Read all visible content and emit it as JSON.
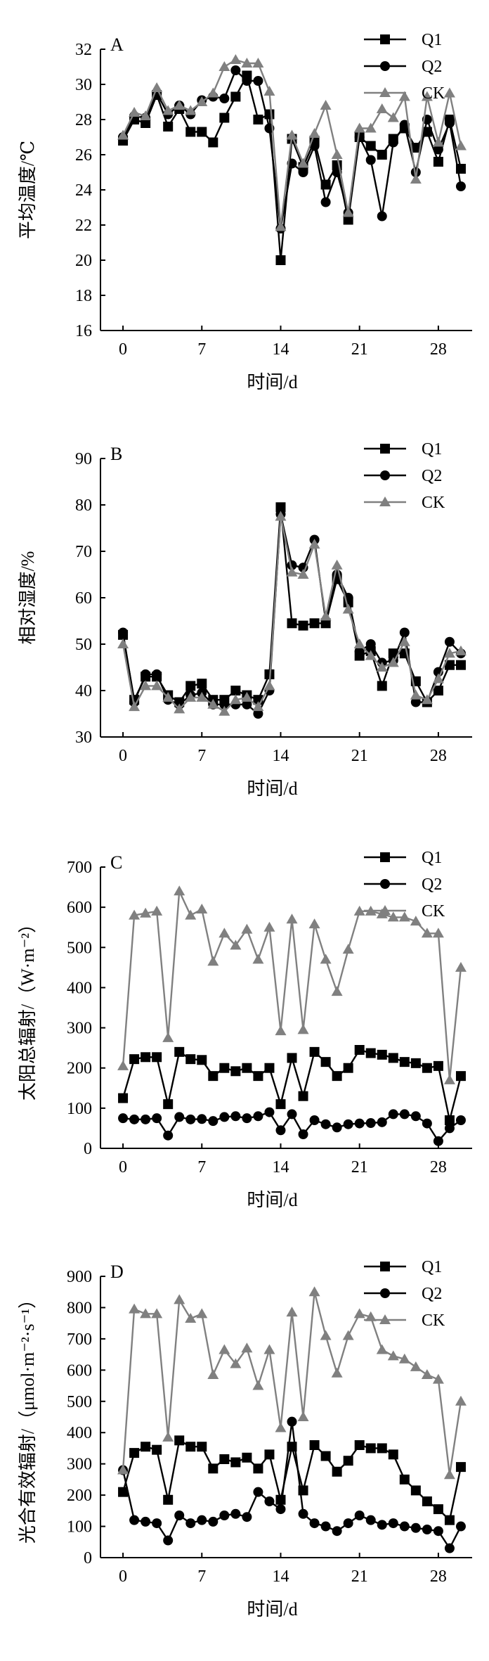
{
  "chart_data": [
    {
      "type": "line",
      "panel": "A",
      "ylabel": "平均温度/℃",
      "xlabel": "时间/d",
      "ylim": [
        16,
        32
      ],
      "yticks": [
        16,
        18,
        20,
        22,
        24,
        26,
        28,
        30,
        32
      ],
      "xlim": [
        -2,
        31
      ],
      "xticks": [
        0,
        7,
        14,
        21,
        28
      ],
      "x": [
        0,
        1,
        2,
        3,
        4,
        5,
        6,
        7,
        8,
        9,
        10,
        11,
        12,
        13,
        14,
        15,
        16,
        17,
        18,
        19,
        20,
        21,
        22,
        23,
        24,
        25,
        26,
        27,
        28,
        29,
        30
      ],
      "series": [
        {
          "name": "Q1",
          "marker": "square",
          "color": "#000000",
          "values": [
            26.8,
            28.0,
            27.8,
            29.4,
            27.6,
            28.6,
            27.3,
            27.3,
            26.7,
            28.1,
            29.3,
            30.5,
            28.0,
            28.3,
            20.0,
            26.9,
            25.3,
            26.8,
            24.3,
            25.4,
            22.3,
            27.0,
            26.5,
            26.0,
            26.9,
            27.5,
            26.4,
            27.3,
            25.6,
            28.0,
            25.2
          ]
        },
        {
          "name": "Q2",
          "marker": "circle",
          "color": "#000000",
          "values": [
            27.0,
            28.2,
            28.1,
            29.5,
            28.3,
            28.8,
            28.3,
            29.1,
            29.3,
            29.2,
            30.8,
            30.2,
            30.2,
            27.5,
            21.8,
            25.5,
            25.0,
            26.5,
            23.3,
            25.0,
            22.7,
            27.0,
            25.7,
            22.5,
            26.7,
            27.7,
            25.0,
            28.0,
            26.3,
            27.8,
            24.2
          ]
        },
        {
          "name": "CK",
          "marker": "triangle",
          "color": "#808080",
          "values": [
            27.1,
            28.4,
            28.2,
            29.8,
            28.5,
            28.8,
            28.5,
            29.0,
            29.5,
            31.0,
            31.4,
            31.2,
            31.2,
            29.6,
            21.9,
            27.1,
            25.5,
            27.2,
            28.8,
            26.0,
            22.7,
            27.5,
            27.5,
            28.6,
            28.1,
            29.3,
            24.6,
            29.3,
            26.7,
            29.5,
            26.5
          ]
        }
      ]
    },
    {
      "type": "line",
      "panel": "B",
      "ylabel": "相对湿度/%",
      "xlabel": "时间/d",
      "ylim": [
        30,
        90
      ],
      "yticks": [
        30,
        40,
        50,
        60,
        70,
        80,
        90
      ],
      "xlim": [
        -2,
        31
      ],
      "xticks": [
        0,
        7,
        14,
        21,
        28
      ],
      "x": [
        0,
        1,
        2,
        3,
        4,
        5,
        6,
        7,
        8,
        9,
        10,
        11,
        12,
        13,
        14,
        15,
        16,
        17,
        18,
        19,
        20,
        21,
        22,
        23,
        24,
        25,
        26,
        27,
        28,
        29,
        30
      ],
      "series": [
        {
          "name": "Q1",
          "marker": "square",
          "color": "#000000",
          "values": [
            52.0,
            38.0,
            43.0,
            43.0,
            39.0,
            37.5,
            41.0,
            41.5,
            38.0,
            38.0,
            40.0,
            39.0,
            38.0,
            43.5,
            79.5,
            54.5,
            54.0,
            54.5,
            54.5,
            64.0,
            59.0,
            47.5,
            48.5,
            41.0,
            48.0,
            48.0,
            42.0,
            37.5,
            40.0,
            45.5,
            45.5
          ]
        },
        {
          "name": "Q2",
          "marker": "circle",
          "color": "#000000",
          "values": [
            52.5,
            37.5,
            43.5,
            43.5,
            38.0,
            37.0,
            39.0,
            39.5,
            37.0,
            37.0,
            37.0,
            37.0,
            35.0,
            40.0,
            78.0,
            67.0,
            66.5,
            72.5,
            55.0,
            65.0,
            60.0,
            48.5,
            50.0,
            46.0,
            46.5,
            52.5,
            37.5,
            37.5,
            44.0,
            50.5,
            48.0
          ]
        },
        {
          "name": "CK",
          "marker": "triangle",
          "color": "#808080",
          "values": [
            50.0,
            36.5,
            41.0,
            41.0,
            38.5,
            36.0,
            38.5,
            38.5,
            37.0,
            35.5,
            38.0,
            38.5,
            36.5,
            41.0,
            77.5,
            65.5,
            65.0,
            71.5,
            56.0,
            67.0,
            57.5,
            50.0,
            47.5,
            45.0,
            46.0,
            50.5,
            39.0,
            38.0,
            42.5,
            48.0,
            48.5
          ]
        }
      ]
    },
    {
      "type": "line",
      "panel": "C",
      "ylabel": "太阳总辐射/（W·m⁻²）",
      "xlabel": "时间/d",
      "ylim": [
        0,
        700
      ],
      "yticks": [
        0,
        100,
        200,
        300,
        400,
        500,
        600,
        700
      ],
      "xlim": [
        -2,
        31
      ],
      "xticks": [
        0,
        7,
        14,
        21,
        28
      ],
      "x": [
        0,
        1,
        2,
        3,
        4,
        5,
        6,
        7,
        8,
        9,
        10,
        11,
        12,
        13,
        14,
        15,
        16,
        17,
        18,
        19,
        20,
        21,
        22,
        23,
        24,
        25,
        26,
        27,
        28,
        29,
        30
      ],
      "series": [
        {
          "name": "Q1",
          "marker": "square",
          "color": "#000000",
          "values": [
            125,
            222,
            227,
            227,
            110,
            240,
            222,
            220,
            180,
            200,
            192,
            200,
            180,
            200,
            110,
            225,
            130,
            240,
            215,
            180,
            200,
            245,
            237,
            233,
            225,
            215,
            212,
            200,
            205,
            70,
            180
          ]
        },
        {
          "name": "Q2",
          "marker": "circle",
          "color": "#000000",
          "values": [
            75,
            72,
            72,
            75,
            32,
            78,
            72,
            73,
            68,
            78,
            80,
            75,
            80,
            90,
            45,
            85,
            35,
            70,
            60,
            52,
            60,
            62,
            63,
            65,
            85,
            85,
            80,
            62,
            18,
            50,
            70
          ]
        },
        {
          "name": "CK",
          "marker": "triangle",
          "color": "#808080",
          "values": [
            205,
            580,
            585,
            590,
            275,
            640,
            580,
            595,
            465,
            535,
            505,
            545,
            470,
            550,
            292,
            570,
            295,
            558,
            470,
            390,
            495,
            590,
            590,
            583,
            575,
            575,
            565,
            535,
            535,
            170,
            450
          ]
        }
      ]
    },
    {
      "type": "line",
      "panel": "D",
      "ylabel": "光合有效辐射/（μmol·m⁻²·s⁻¹）",
      "xlabel": "时间/d",
      "ylim": [
        0,
        900
      ],
      "yticks": [
        0,
        100,
        200,
        300,
        400,
        500,
        600,
        700,
        800,
        900
      ],
      "xlim": [
        -2,
        31
      ],
      "xticks": [
        0,
        7,
        14,
        21,
        28
      ],
      "x": [
        0,
        1,
        2,
        3,
        4,
        5,
        6,
        7,
        8,
        9,
        10,
        11,
        12,
        13,
        14,
        15,
        16,
        17,
        18,
        19,
        20,
        21,
        22,
        23,
        24,
        25,
        26,
        27,
        28,
        29,
        30
      ],
      "series": [
        {
          "name": "Q1",
          "marker": "square",
          "color": "#000000",
          "values": [
            210,
            335,
            355,
            345,
            185,
            375,
            355,
            355,
            285,
            315,
            305,
            320,
            285,
            330,
            185,
            355,
            215,
            360,
            325,
            275,
            310,
            360,
            350,
            350,
            330,
            250,
            215,
            180,
            155,
            120,
            290
          ]
        },
        {
          "name": "Q2",
          "marker": "circle",
          "color": "#000000",
          "values": [
            280,
            120,
            115,
            110,
            55,
            135,
            110,
            120,
            115,
            135,
            140,
            130,
            210,
            180,
            155,
            435,
            140,
            110,
            100,
            85,
            110,
            135,
            120,
            105,
            110,
            100,
            95,
            90,
            85,
            30,
            100
          ]
        },
        {
          "name": "CK",
          "marker": "triangle",
          "color": "#808080",
          "values": [
            280,
            795,
            780,
            780,
            385,
            825,
            765,
            780,
            585,
            665,
            620,
            670,
            550,
            665,
            415,
            785,
            450,
            850,
            710,
            590,
            710,
            780,
            770,
            665,
            645,
            635,
            610,
            585,
            570,
            265,
            500
          ]
        }
      ]
    }
  ]
}
